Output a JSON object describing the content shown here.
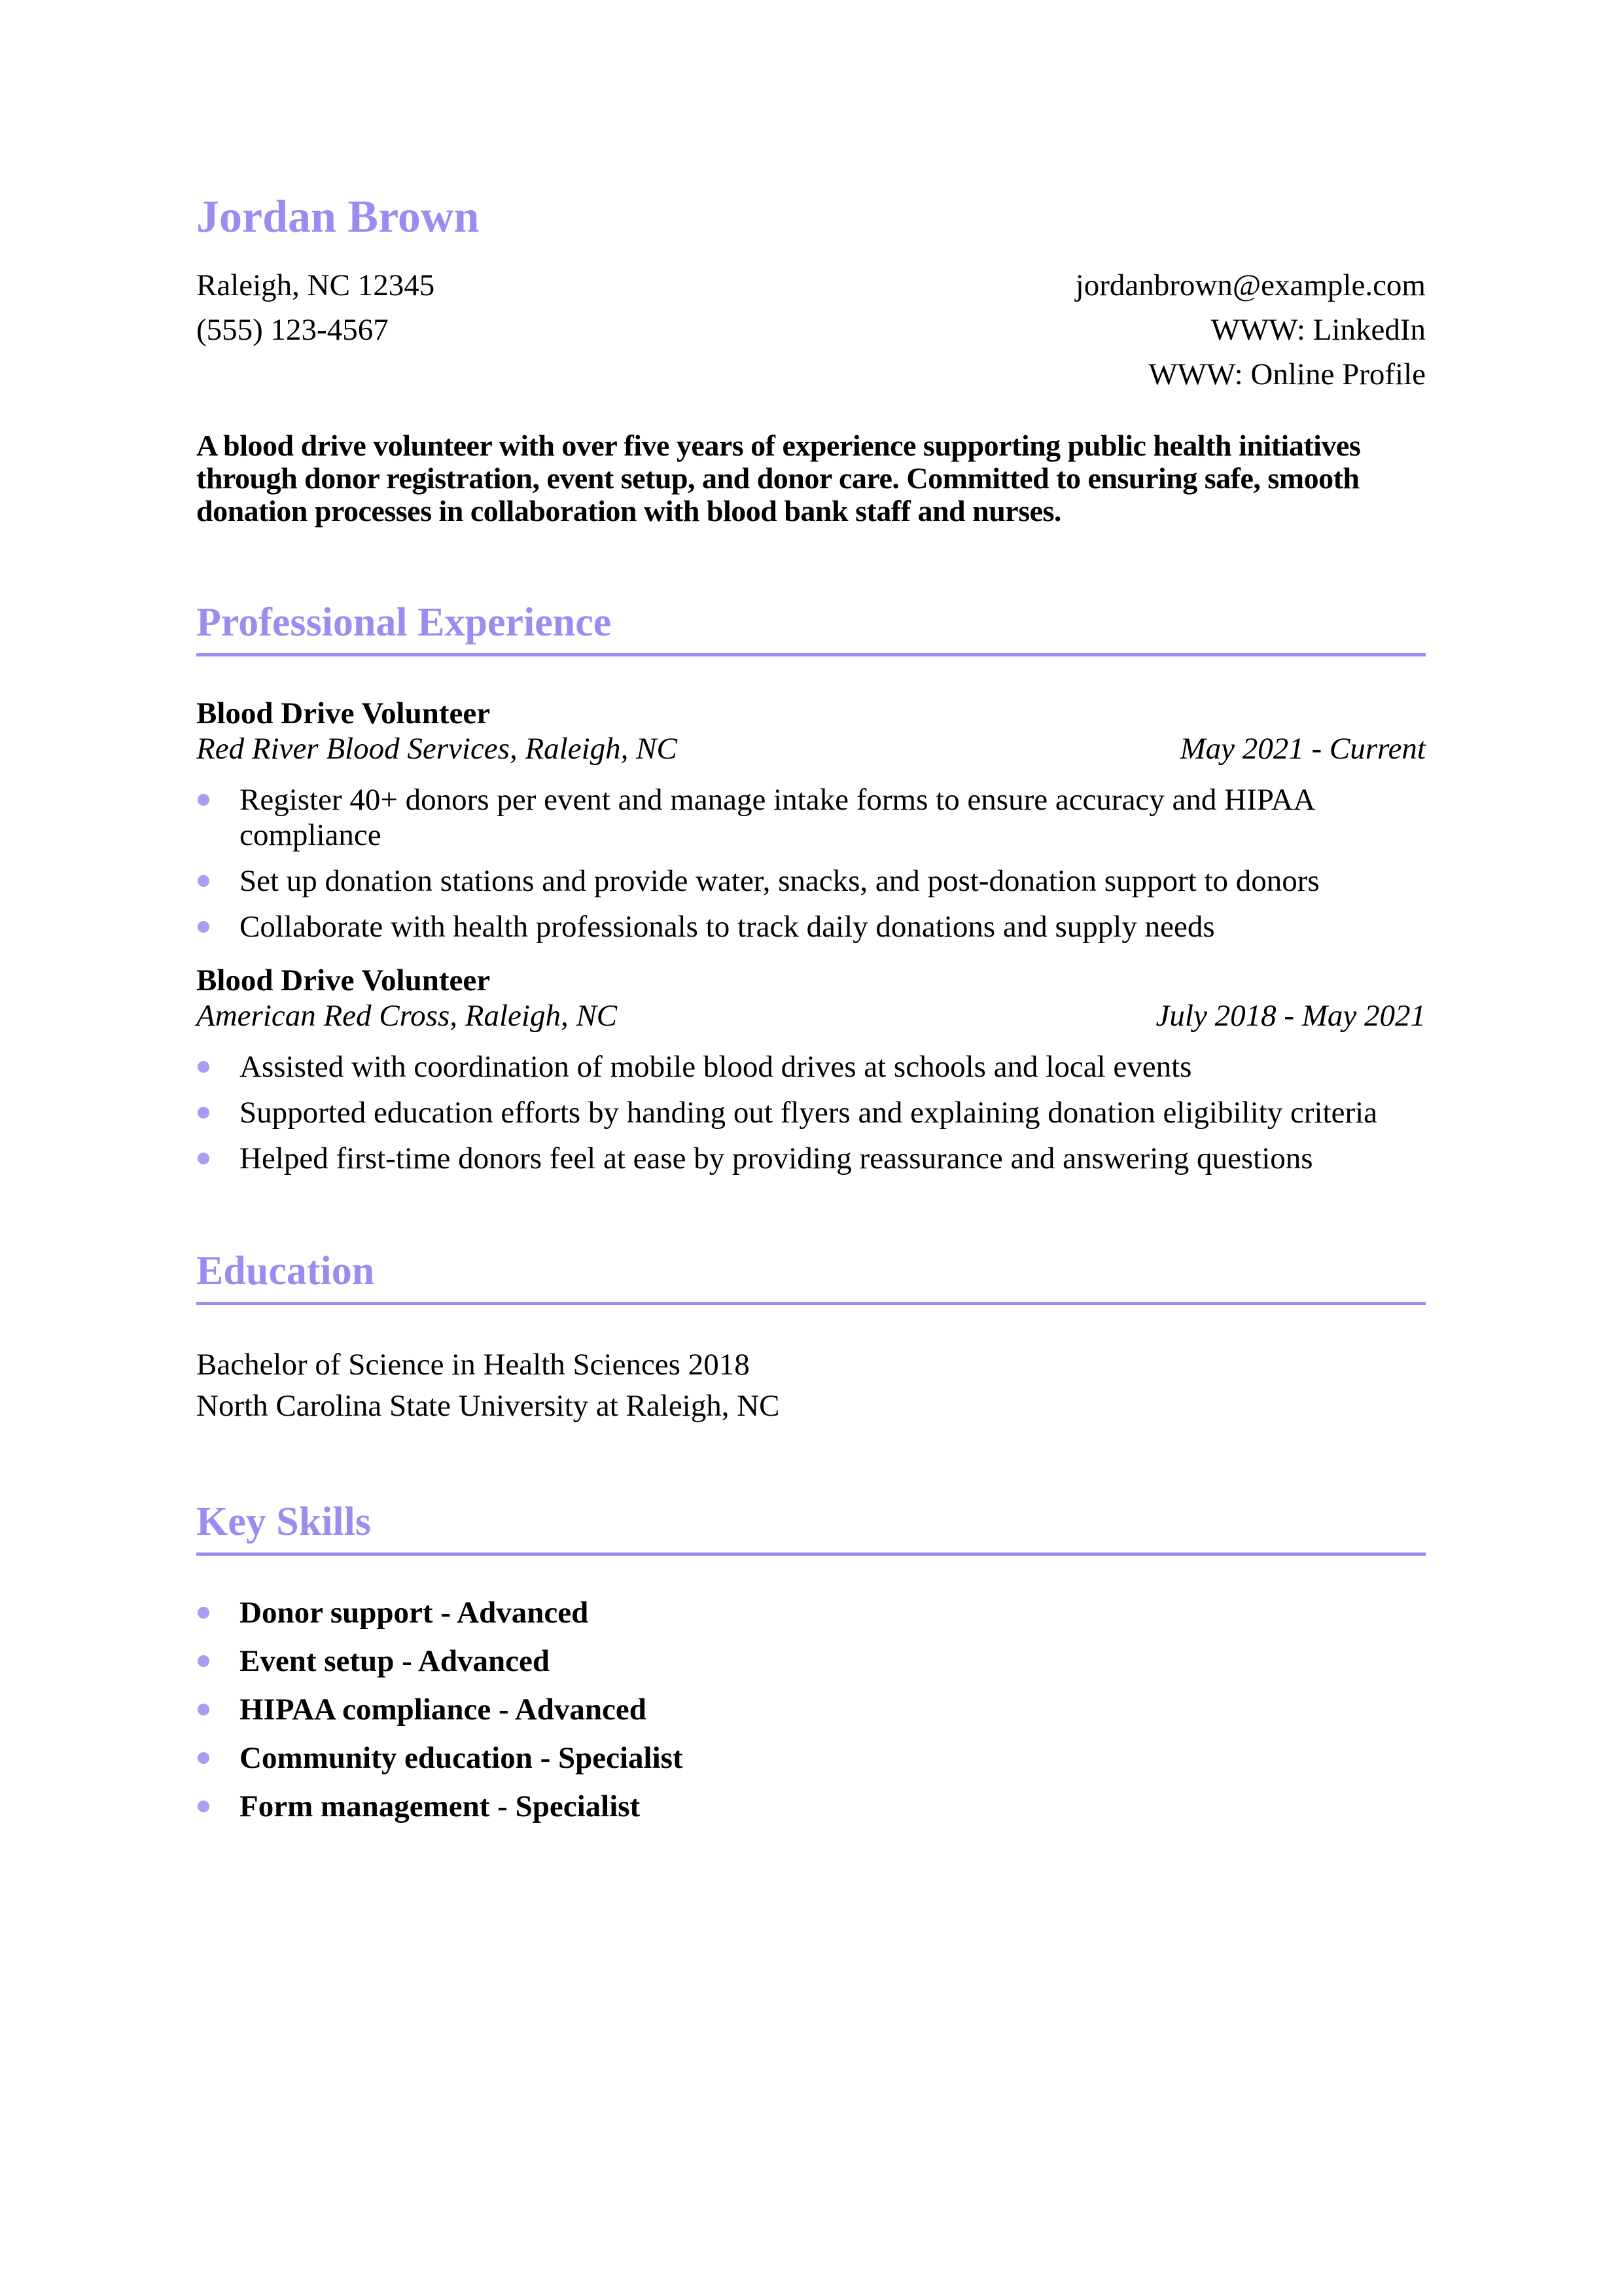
{
  "accent": "#9b8df0",
  "bullet_color": "#a89df2",
  "header": {
    "name": "Jordan Brown",
    "location": "Raleigh, NC 12345",
    "phone": "(555) 123-4567",
    "email": "jordanbrown@example.com",
    "link_linkedin": "WWW: LinkedIn",
    "link_profile": "WWW: Online Profile"
  },
  "summary": "A blood drive volunteer with over five years of experience supporting public health initiatives through donor registration, event setup, and donor care. Committed to ensuring safe, smooth donation processes in collaboration with blood bank staff and nurses.",
  "experience": {
    "heading": "Professional Experience",
    "jobs": [
      {
        "title": "Blood Drive Volunteer",
        "company": "Red River Blood Services, Raleigh, NC",
        "dates": "May 2021 - Current",
        "bullets": [
          "Register 40+ donors per event and manage intake forms to ensure accuracy and HIPAA compliance",
          "Set up donation stations and provide water, snacks, and post-donation support to donors",
          "Collaborate with health professionals to track daily donations and supply needs"
        ]
      },
      {
        "title": "Blood Drive Volunteer",
        "company": "American Red Cross, Raleigh, NC",
        "dates": "July 2018 - May 2021",
        "bullets": [
          "Assisted with coordination of mobile blood drives at schools and local events",
          "Supported education efforts by handing out flyers and explaining donation eligibility criteria",
          "Helped first-time donors feel at ease by providing reassurance and answering questions"
        ]
      }
    ]
  },
  "education": {
    "heading": "Education",
    "degree": "Bachelor of Science in Health Sciences 2018",
    "school": "North Carolina State University at Raleigh, NC"
  },
  "skills": {
    "heading": "Key Skills",
    "items": [
      "Donor support - Advanced",
      "Event setup - Advanced",
      "HIPAA compliance - Advanced",
      "Community education - Specialist",
      "Form management - Specialist"
    ]
  }
}
